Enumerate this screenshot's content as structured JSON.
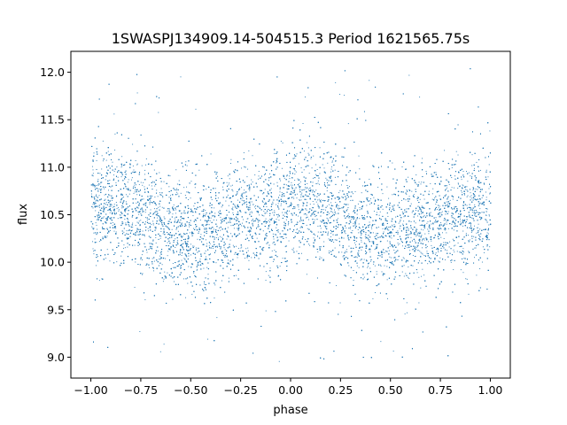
{
  "chart_data": {
    "type": "scatter",
    "title": "1SWASPJ134909.14-504515.3 Period 1621565.75s",
    "xlabel": "phase",
    "ylabel": "flux",
    "xlim": [
      -1.1,
      1.1
    ],
    "ylim": [
      8.78,
      12.22
    ],
    "xticks": [
      -1.0,
      -0.75,
      -0.5,
      -0.25,
      0.0,
      0.25,
      0.5,
      0.75,
      1.0
    ],
    "xtick_labels": [
      "−1.00",
      "−0.75",
      "−0.50",
      "−0.25",
      "0.00",
      "0.25",
      "0.50",
      "0.75",
      "1.00"
    ],
    "yticks": [
      9.0,
      9.5,
      10.0,
      10.5,
      11.0,
      11.5,
      12.0
    ],
    "ytick_labels": [
      "9.0",
      "9.5",
      "10.0",
      "10.5",
      "11.0",
      "11.5",
      "12.0"
    ],
    "marker_color": "#1f77b4",
    "grid": false,
    "series": [
      {
        "phase_range": [
          -1.0,
          1.0
        ],
        "period_in_phase": 1.0,
        "approx_points": 12000,
        "approx_flux_profile": {
          "phase": [
            0.0,
            0.1,
            0.2,
            0.3,
            0.4,
            0.5,
            0.6,
            0.7,
            0.8,
            0.9,
            1.0
          ],
          "mean_flux": [
            10.55,
            10.62,
            10.58,
            10.45,
            10.35,
            10.28,
            10.33,
            10.42,
            10.48,
            10.52,
            10.55
          ]
        },
        "approx_core_scatter": 0.3,
        "outlier_range": [
          8.95,
          12.05
        ]
      }
    ]
  }
}
